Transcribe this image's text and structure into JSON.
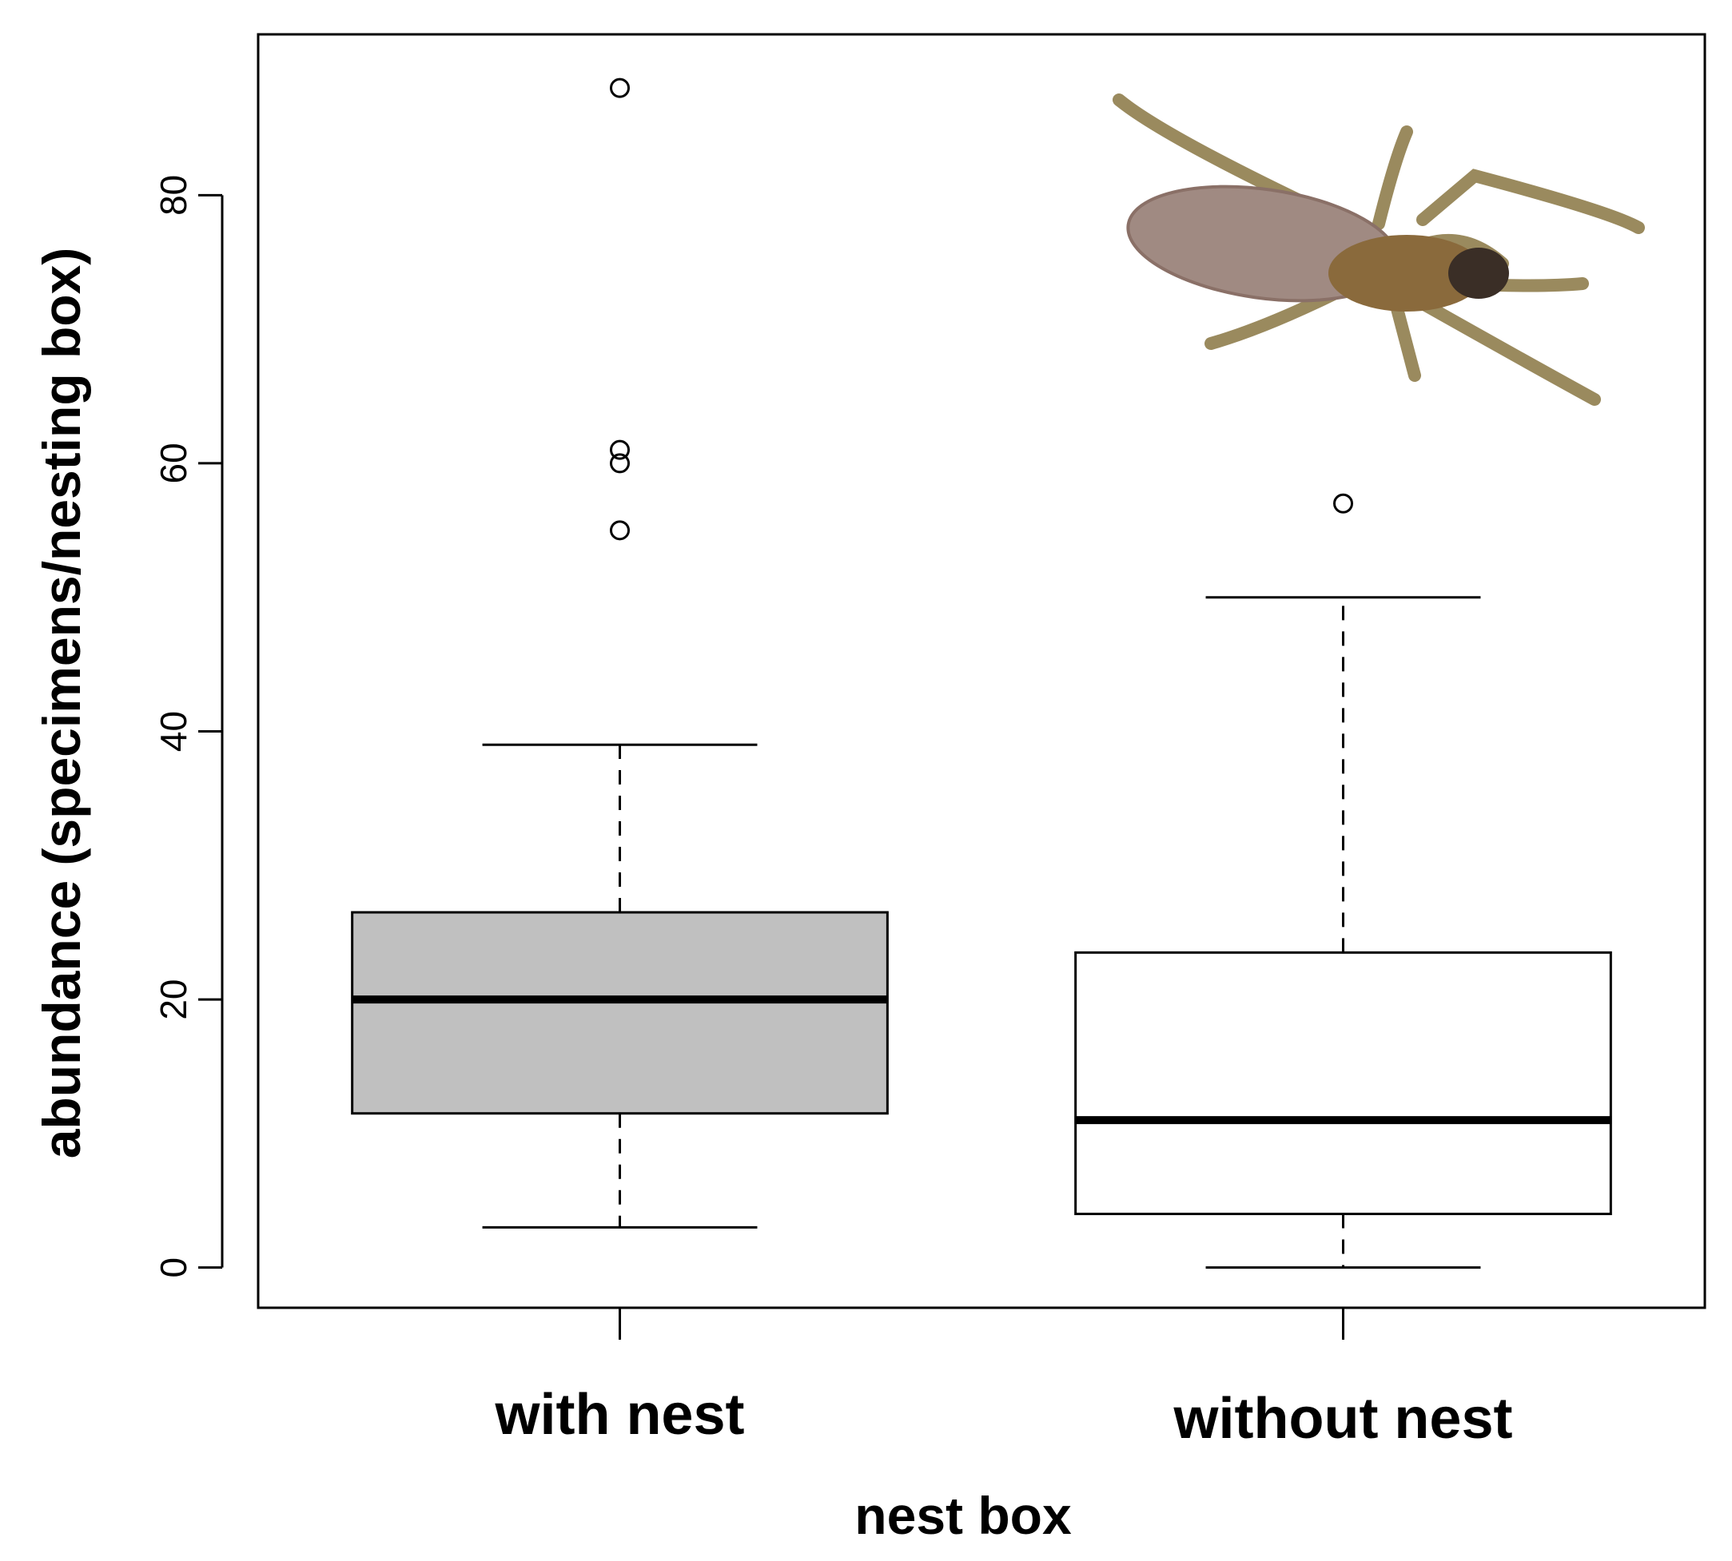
{
  "chart_data": {
    "type": "boxplot",
    "xlabel": "nest box",
    "ylabel": "abundance  (specimens/nesting box)",
    "categories": [
      "with nest",
      "without nest"
    ],
    "ylim": [
      -3,
      92
    ],
    "yticks": [
      0,
      20,
      40,
      60,
      80
    ],
    "grid": false,
    "legend": "none",
    "boxes": [
      {
        "category": "with nest",
        "whisker_low": 3,
        "q1": 11.5,
        "median": 20,
        "q3": 26.5,
        "whisker_high": 39,
        "outliers": [
          55,
          60,
          61,
          88
        ],
        "fill": "#c0c0c0"
      },
      {
        "category": "without nest",
        "whisker_low": 0,
        "q1": 4,
        "median": 11,
        "q3": 23.5,
        "whisker_high": 50,
        "outliers": [
          57
        ],
        "fill": "#ffffff"
      }
    ],
    "illustration": "spider-photo"
  }
}
